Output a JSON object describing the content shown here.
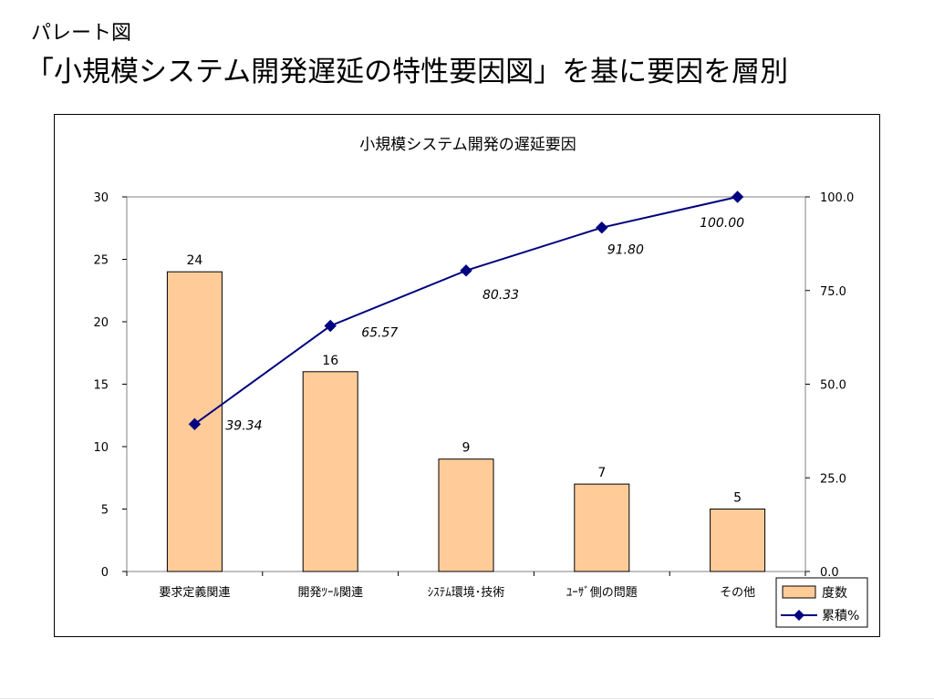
{
  "slide": {
    "subtitle": "パレート図",
    "title": "「小規模システム開発遅延の特性要因図」を基に要因を層別"
  },
  "chart_data": {
    "type": "bar",
    "title": "小規模システム開発の遅延要因",
    "categories": [
      "要求定義関連",
      "開発ﾂｰﾙ関連",
      "ｼｽﾃﾑ環境･技術",
      "ﾕｰｻﾞ側の問題",
      "その他"
    ],
    "series": [
      {
        "name": "度数",
        "type": "bar",
        "axis": "left",
        "values": [
          24,
          16,
          9,
          7,
          5
        ],
        "labels": [
          "24",
          "16",
          "9",
          "7",
          "5"
        ],
        "color": "#ffcc99",
        "stroke": "#000000"
      },
      {
        "name": "累積%",
        "type": "line",
        "axis": "right",
        "marker": "diamond",
        "values": [
          39.34,
          65.57,
          80.33,
          91.8,
          100.0
        ],
        "labels": [
          "39.34",
          "65.57",
          "80.33",
          "91.80",
          "100.00"
        ],
        "color": "#000080"
      }
    ],
    "y_left": {
      "min": 0,
      "max": 30,
      "ticks": [
        "0",
        "5",
        "10",
        "15",
        "20",
        "25",
        "30"
      ]
    },
    "y_right": {
      "min": 0,
      "max": 100,
      "ticks": [
        "0.0",
        "25.0",
        "50.0",
        "75.0",
        "100.0"
      ]
    },
    "grid": false,
    "legend_position": "bottom-right"
  }
}
